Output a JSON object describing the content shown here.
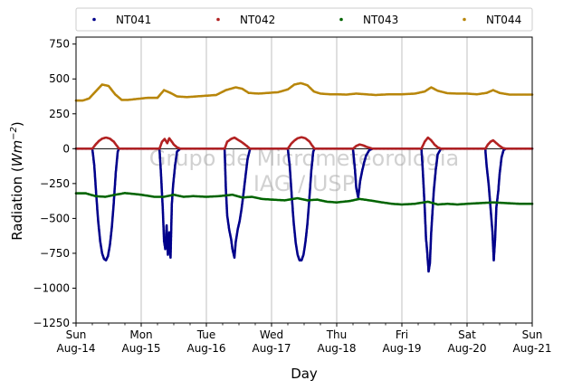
{
  "chart_data": {
    "type": "scatter",
    "xlabel": "Day",
    "ylabel_main": "Radiation (",
    "ylabel_unit_base": "Wm",
    "ylabel_unit_exp": "−2",
    "ylabel_close": ")",
    "xlim": [
      0,
      7
    ],
    "ylim": [
      -1250,
      800
    ],
    "yticks": [
      750,
      500,
      250,
      0,
      -250,
      -500,
      -750,
      -1000,
      -1250
    ],
    "xticks": [
      {
        "x": 0,
        "day": "Sun",
        "date": "Aug-14"
      },
      {
        "x": 1,
        "day": "Mon",
        "date": "Aug-15"
      },
      {
        "x": 2,
        "day": "Tue",
        "date": "Aug-16"
      },
      {
        "x": 3,
        "day": "Wed",
        "date": "Aug-17"
      },
      {
        "x": 4,
        "day": "Thu",
        "date": "Aug-18"
      },
      {
        "x": 5,
        "day": "Fri",
        "date": "Aug-19"
      },
      {
        "x": 6,
        "day": "Sat",
        "date": "Aug-20"
      },
      {
        "x": 7,
        "day": "Sun",
        "date": "Aug-21"
      }
    ],
    "grid": "vertical",
    "legend_position": "top",
    "watermark": [
      "Grupo de Micrometeorologia",
      "IAG / USP"
    ],
    "series": [
      {
        "name": "NT041",
        "color": "#00008b",
        "points": [
          [
            0.0,
            0
          ],
          [
            0.25,
            0
          ],
          [
            0.28,
            -120
          ],
          [
            0.31,
            -330
          ],
          [
            0.34,
            -520
          ],
          [
            0.37,
            -660
          ],
          [
            0.4,
            -750
          ],
          [
            0.43,
            -790
          ],
          [
            0.46,
            -800
          ],
          [
            0.49,
            -770
          ],
          [
            0.52,
            -690
          ],
          [
            0.55,
            -560
          ],
          [
            0.58,
            -380
          ],
          [
            0.61,
            -170
          ],
          [
            0.64,
            -20
          ],
          [
            0.66,
            0
          ],
          [
            1.0,
            0
          ],
          [
            1.28,
            0
          ],
          [
            1.3,
            -150
          ],
          [
            1.33,
            -420
          ],
          [
            1.35,
            -660
          ],
          [
            1.37,
            -720
          ],
          [
            1.39,
            -550
          ],
          [
            1.41,
            -760
          ],
          [
            1.43,
            -600
          ],
          [
            1.45,
            -780
          ],
          [
            1.47,
            -400
          ],
          [
            1.49,
            -260
          ],
          [
            1.52,
            -120
          ],
          [
            1.55,
            -20
          ],
          [
            1.6,
            0
          ],
          [
            2.0,
            0
          ],
          [
            2.28,
            0
          ],
          [
            2.3,
            -300
          ],
          [
            2.32,
            -480
          ],
          [
            2.35,
            -580
          ],
          [
            2.38,
            -650
          ],
          [
            2.4,
            -720
          ],
          [
            2.43,
            -780
          ],
          [
            2.45,
            -670
          ],
          [
            2.48,
            -580
          ],
          [
            2.51,
            -520
          ],
          [
            2.54,
            -430
          ],
          [
            2.57,
            -320
          ],
          [
            2.6,
            -200
          ],
          [
            2.63,
            -80
          ],
          [
            2.67,
            0
          ],
          [
            3.0,
            0
          ],
          [
            3.25,
            0
          ],
          [
            3.28,
            -130
          ],
          [
            3.31,
            -340
          ],
          [
            3.34,
            -530
          ],
          [
            3.37,
            -670
          ],
          [
            3.4,
            -760
          ],
          [
            3.43,
            -800
          ],
          [
            3.46,
            -800
          ],
          [
            3.49,
            -760
          ],
          [
            3.52,
            -670
          ],
          [
            3.55,
            -540
          ],
          [
            3.58,
            -360
          ],
          [
            3.61,
            -160
          ],
          [
            3.64,
            -20
          ],
          [
            3.66,
            0
          ],
          [
            4.0,
            0
          ],
          [
            4.25,
            0
          ],
          [
            4.28,
            -150
          ],
          [
            4.3,
            -280
          ],
          [
            4.33,
            -350
          ],
          [
            4.36,
            -230
          ],
          [
            4.39,
            -160
          ],
          [
            4.42,
            -100
          ],
          [
            4.45,
            -50
          ],
          [
            4.5,
            -10
          ],
          [
            4.55,
            0
          ],
          [
            5.0,
            0
          ],
          [
            5.3,
            0
          ],
          [
            5.32,
            -150
          ],
          [
            5.35,
            -420
          ],
          [
            5.37,
            -640
          ],
          [
            5.39,
            -750
          ],
          [
            5.41,
            -880
          ],
          [
            5.43,
            -820
          ],
          [
            5.45,
            -600
          ],
          [
            5.47,
            -450
          ],
          [
            5.49,
            -300
          ],
          [
            5.52,
            -150
          ],
          [
            5.55,
            -40
          ],
          [
            5.6,
            0
          ],
          [
            6.0,
            0
          ],
          [
            6.28,
            0
          ],
          [
            6.3,
            -120
          ],
          [
            6.33,
            -250
          ],
          [
            6.36,
            -420
          ],
          [
            6.39,
            -600
          ],
          [
            6.41,
            -800
          ],
          [
            6.43,
            -650
          ],
          [
            6.45,
            -420
          ],
          [
            6.48,
            -300
          ],
          [
            6.5,
            -180
          ],
          [
            6.53,
            -60
          ],
          [
            6.56,
            -10
          ],
          [
            6.6,
            0
          ],
          [
            7.0,
            0
          ]
        ]
      },
      {
        "name": "NT042",
        "color": "#b22222",
        "points": [
          [
            0.0,
            0
          ],
          [
            0.25,
            0
          ],
          [
            0.3,
            30
          ],
          [
            0.35,
            55
          ],
          [
            0.4,
            72
          ],
          [
            0.46,
            80
          ],
          [
            0.52,
            72
          ],
          [
            0.58,
            50
          ],
          [
            0.62,
            25
          ],
          [
            0.66,
            0
          ],
          [
            1.0,
            0
          ],
          [
            1.28,
            0
          ],
          [
            1.32,
            50
          ],
          [
            1.36,
            70
          ],
          [
            1.4,
            40
          ],
          [
            1.43,
            75
          ],
          [
            1.47,
            50
          ],
          [
            1.5,
            30
          ],
          [
            1.55,
            10
          ],
          [
            1.6,
            0
          ],
          [
            2.0,
            0
          ],
          [
            2.28,
            0
          ],
          [
            2.32,
            50
          ],
          [
            2.38,
            70
          ],
          [
            2.43,
            80
          ],
          [
            2.48,
            65
          ],
          [
            2.55,
            45
          ],
          [
            2.62,
            20
          ],
          [
            2.67,
            0
          ],
          [
            3.0,
            0
          ],
          [
            3.25,
            0
          ],
          [
            3.3,
            35
          ],
          [
            3.35,
            58
          ],
          [
            3.4,
            75
          ],
          [
            3.46,
            82
          ],
          [
            3.52,
            75
          ],
          [
            3.58,
            52
          ],
          [
            3.62,
            25
          ],
          [
            3.66,
            0
          ],
          [
            4.0,
            0
          ],
          [
            4.25,
            0
          ],
          [
            4.3,
            20
          ],
          [
            4.35,
            30
          ],
          [
            4.4,
            25
          ],
          [
            4.45,
            15
          ],
          [
            4.55,
            0
          ],
          [
            5.0,
            0
          ],
          [
            5.3,
            0
          ],
          [
            5.35,
            50
          ],
          [
            5.4,
            80
          ],
          [
            5.45,
            60
          ],
          [
            5.5,
            30
          ],
          [
            5.55,
            10
          ],
          [
            5.6,
            0
          ],
          [
            6.0,
            0
          ],
          [
            6.28,
            0
          ],
          [
            6.32,
            30
          ],
          [
            6.36,
            50
          ],
          [
            6.4,
            60
          ],
          [
            6.45,
            40
          ],
          [
            6.5,
            20
          ],
          [
            6.55,
            5
          ],
          [
            6.6,
            0
          ],
          [
            7.0,
            0
          ]
        ]
      },
      {
        "name": "NT043",
        "color": "#006400",
        "points": [
          [
            0.0,
            -320
          ],
          [
            0.15,
            -320
          ],
          [
            0.3,
            -340
          ],
          [
            0.45,
            -345
          ],
          [
            0.6,
            -330
          ],
          [
            0.75,
            -318
          ],
          [
            0.9,
            -325
          ],
          [
            1.0,
            -330
          ],
          [
            1.2,
            -345
          ],
          [
            1.35,
            -345
          ],
          [
            1.5,
            -330
          ],
          [
            1.65,
            -345
          ],
          [
            1.8,
            -340
          ],
          [
            2.0,
            -345
          ],
          [
            2.2,
            -340
          ],
          [
            2.4,
            -330
          ],
          [
            2.55,
            -350
          ],
          [
            2.7,
            -345
          ],
          [
            2.85,
            -360
          ],
          [
            3.0,
            -365
          ],
          [
            3.2,
            -370
          ],
          [
            3.4,
            -355
          ],
          [
            3.55,
            -370
          ],
          [
            3.7,
            -365
          ],
          [
            3.85,
            -380
          ],
          [
            4.0,
            -385
          ],
          [
            4.2,
            -375
          ],
          [
            4.35,
            -360
          ],
          [
            4.5,
            -370
          ],
          [
            4.7,
            -385
          ],
          [
            4.85,
            -395
          ],
          [
            5.0,
            -400
          ],
          [
            5.2,
            -395
          ],
          [
            5.4,
            -380
          ],
          [
            5.55,
            -400
          ],
          [
            5.7,
            -395
          ],
          [
            5.85,
            -400
          ],
          [
            6.0,
            -395
          ],
          [
            6.2,
            -390
          ],
          [
            6.4,
            -385
          ],
          [
            6.6,
            -390
          ],
          [
            6.8,
            -395
          ],
          [
            7.0,
            -395
          ]
        ]
      },
      {
        "name": "NT044",
        "color": "#b8860b",
        "points": [
          [
            0.0,
            345
          ],
          [
            0.1,
            345
          ],
          [
            0.2,
            360
          ],
          [
            0.3,
            410
          ],
          [
            0.4,
            460
          ],
          [
            0.5,
            450
          ],
          [
            0.6,
            390
          ],
          [
            0.7,
            350
          ],
          [
            0.8,
            350
          ],
          [
            0.9,
            355
          ],
          [
            1.0,
            360
          ],
          [
            1.1,
            365
          ],
          [
            1.25,
            365
          ],
          [
            1.35,
            420
          ],
          [
            1.45,
            400
          ],
          [
            1.55,
            375
          ],
          [
            1.7,
            370
          ],
          [
            1.85,
            375
          ],
          [
            2.0,
            380
          ],
          [
            2.15,
            385
          ],
          [
            2.3,
            420
          ],
          [
            2.45,
            440
          ],
          [
            2.55,
            430
          ],
          [
            2.65,
            400
          ],
          [
            2.8,
            395
          ],
          [
            2.95,
            400
          ],
          [
            3.1,
            405
          ],
          [
            3.25,
            425
          ],
          [
            3.35,
            460
          ],
          [
            3.45,
            470
          ],
          [
            3.55,
            455
          ],
          [
            3.65,
            410
          ],
          [
            3.75,
            395
          ],
          [
            3.9,
            390
          ],
          [
            4.0,
            390
          ],
          [
            4.15,
            388
          ],
          [
            4.3,
            395
          ],
          [
            4.45,
            390
          ],
          [
            4.6,
            385
          ],
          [
            4.8,
            390
          ],
          [
            5.0,
            390
          ],
          [
            5.2,
            395
          ],
          [
            5.35,
            410
          ],
          [
            5.45,
            440
          ],
          [
            5.55,
            415
          ],
          [
            5.7,
            398
          ],
          [
            5.85,
            395
          ],
          [
            6.0,
            395
          ],
          [
            6.15,
            390
          ],
          [
            6.3,
            400
          ],
          [
            6.4,
            420
          ],
          [
            6.5,
            400
          ],
          [
            6.65,
            388
          ],
          [
            6.8,
            388
          ],
          [
            7.0,
            388
          ]
        ]
      }
    ]
  }
}
